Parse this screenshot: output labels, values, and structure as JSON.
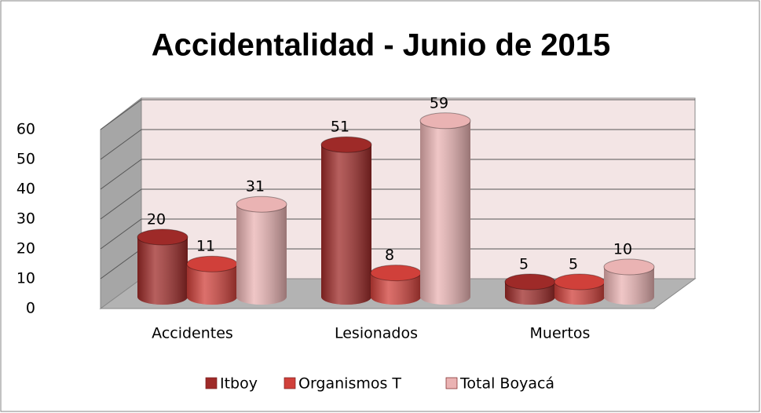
{
  "chart_data": {
    "type": "bar3d",
    "title": "Accidentalidad - Junio de 2015",
    "categories": [
      "Accidentes",
      "Lesionados",
      "Muertos"
    ],
    "series": [
      {
        "name": "Itboy",
        "color": "#9e2a28",
        "values": [
          20,
          51,
          5
        ]
      },
      {
        "name": "Organismos T",
        "color": "#d0403a",
        "values": [
          11,
          8,
          5
        ]
      },
      {
        "name": "Total Boyacá",
        "color": "#eab3b3",
        "values": [
          31,
          59,
          10
        ]
      }
    ],
    "ylim": [
      0,
      60
    ],
    "yticks": [
      0,
      10,
      20,
      30,
      40,
      50,
      60
    ],
    "grid": true,
    "legend": "bottom"
  }
}
